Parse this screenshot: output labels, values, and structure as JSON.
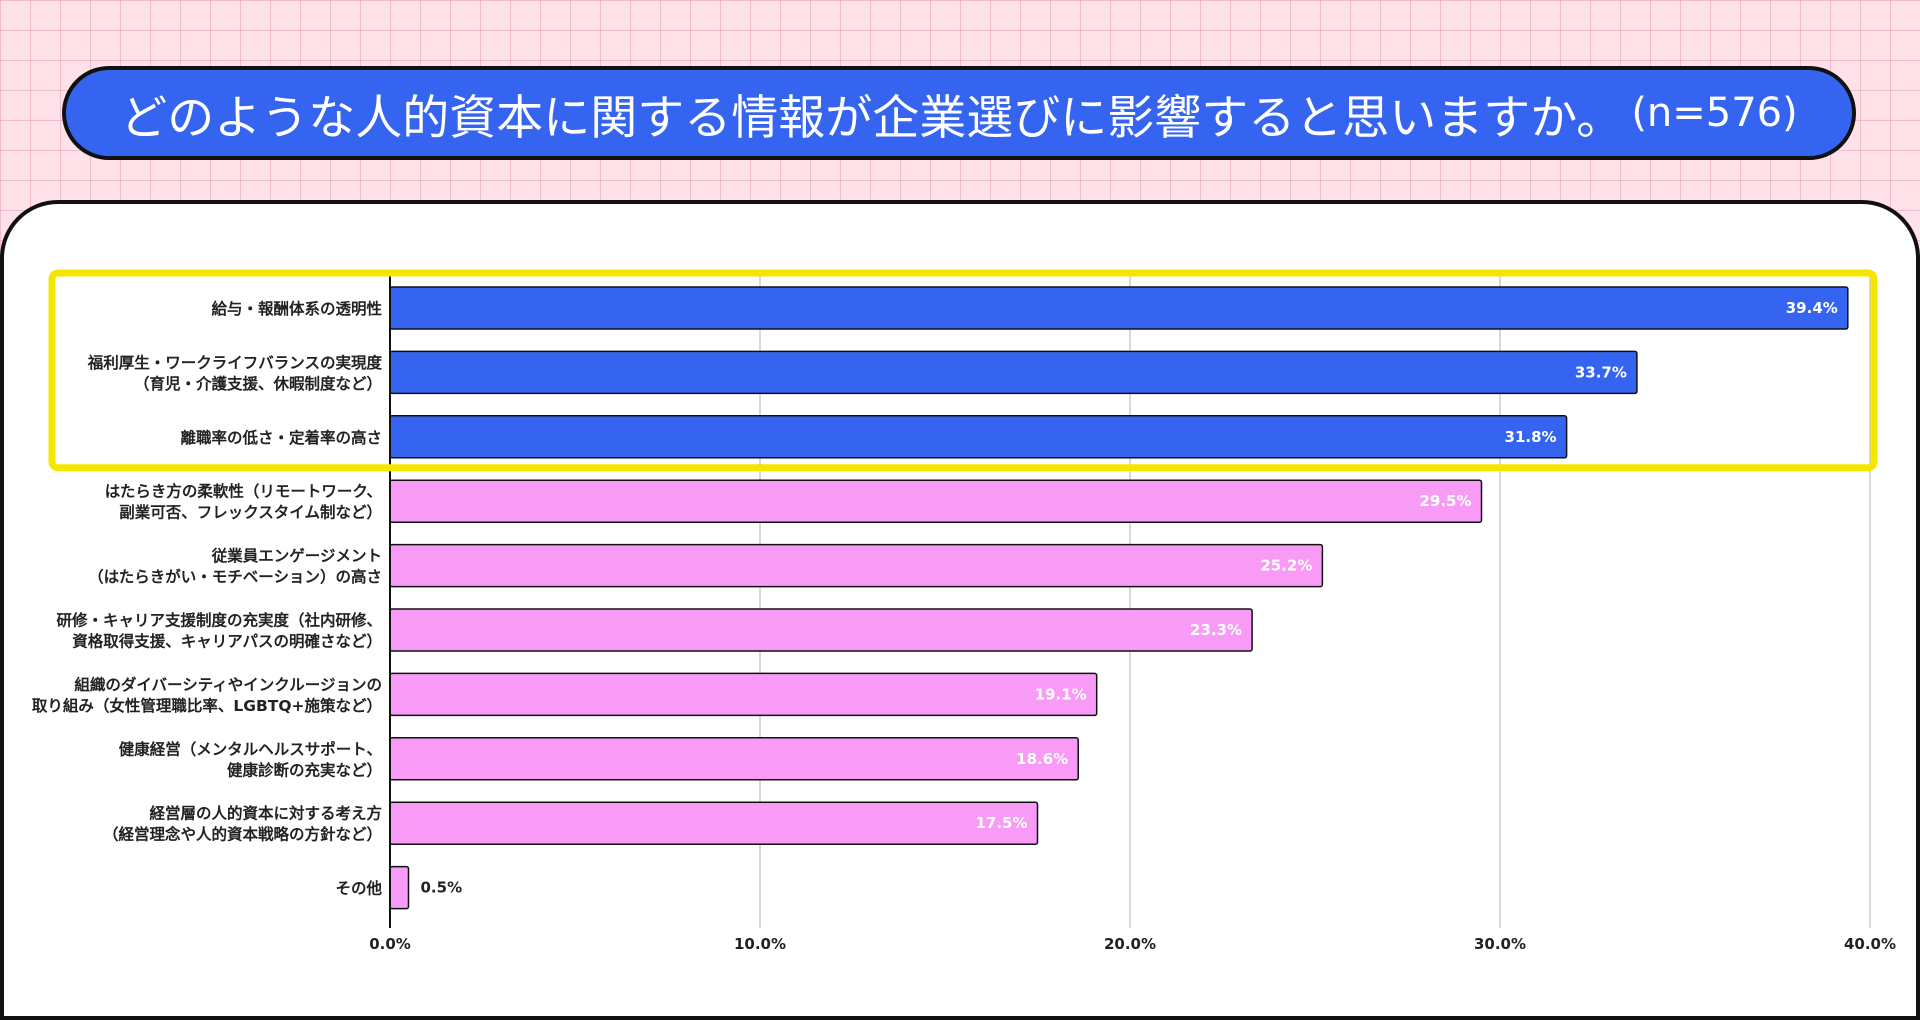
{
  "title": {
    "main": "どのような人的資本に関する情報が企業選びに影響すると思いますか。",
    "n": "(n=576)"
  },
  "colors": {
    "background": "#ffe1ea",
    "title_fill": "#3565f0",
    "highlight_bar": "#3565f0",
    "other_bar": "#f79bf7",
    "highlight_frame": "#f5e600",
    "gridline": "#cccccc"
  },
  "chart_data": {
    "type": "bar",
    "orientation": "horizontal",
    "categories": [
      [
        "給与・報酬体系の透明性"
      ],
      [
        "福利厚生・ワークライフバランスの実現度",
        "（育児・介護支援、休暇制度など）"
      ],
      [
        "離職率の低さ・定着率の高さ"
      ],
      [
        "はたらき方の柔軟性（リモートワーク、",
        "副業可否、フレックスタイム制など）"
      ],
      [
        "従業員エンゲージメント",
        "（はたらきがい・モチベーション）の高さ"
      ],
      [
        "研修・キャリア支援制度の充実度（社内研修、",
        "資格取得支援、キャリアパスの明確さなど）"
      ],
      [
        "組織のダイバーシティやインクルージョンの",
        "取り組み（女性管理職比率、LGBTQ+施策など）"
      ],
      [
        "健康経営（メンタルヘルスサポート、",
        "健康診断の充実など）"
      ],
      [
        "経営層の人的資本に対する考え方",
        "（経営理念や人的資本戦略の方針など）"
      ],
      [
        "その他"
      ]
    ],
    "values": [
      39.4,
      33.7,
      31.8,
      29.5,
      25.2,
      23.3,
      19.1,
      18.6,
      17.5,
      0.5
    ],
    "value_labels": [
      "39.4%",
      "33.7%",
      "31.8%",
      "29.5%",
      "25.2%",
      "23.3%",
      "19.1%",
      "18.6%",
      "17.5%",
      "0.5%"
    ],
    "highlighted": [
      true,
      true,
      true,
      false,
      false,
      false,
      false,
      false,
      false,
      false
    ],
    "xlim": [
      0,
      40
    ],
    "xticks": [
      0,
      10,
      20,
      30,
      40
    ],
    "xtick_labels": [
      "0.0%",
      "10.0%",
      "20.0%",
      "30.0%",
      "40.0%"
    ],
    "grid": true,
    "legend": "none"
  }
}
